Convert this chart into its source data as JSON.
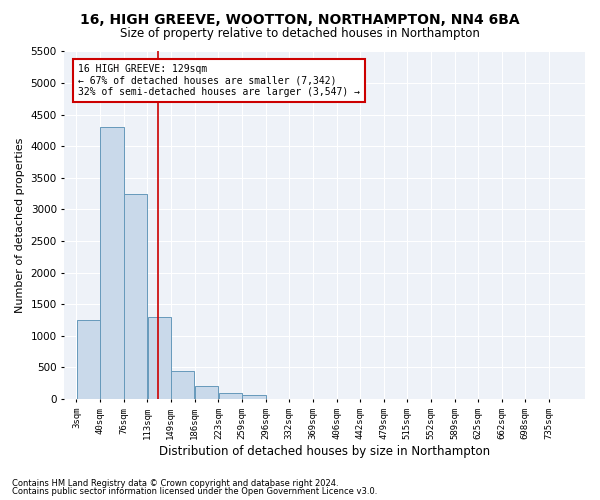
{
  "title": "16, HIGH GREEVE, WOOTTON, NORTHAMPTON, NN4 6BA",
  "subtitle": "Size of property relative to detached houses in Northampton",
  "xlabel": "Distribution of detached houses by size in Northampton",
  "ylabel": "Number of detached properties",
  "footnote1": "Contains HM Land Registry data © Crown copyright and database right 2024.",
  "footnote2": "Contains public sector information licensed under the Open Government Licence v3.0.",
  "annotation_title": "16 HIGH GREEVE: 129sqm",
  "annotation_line1": "← 67% of detached houses are smaller (7,342)",
  "annotation_line2": "32% of semi-detached houses are larger (3,547) →",
  "property_size": 129,
  "bar_color": "#c9d9ea",
  "bar_edge_color": "#6699bb",
  "vline_color": "#cc0000",
  "annotation_box_edgecolor": "#cc0000",
  "background_color": "#eef2f8",
  "categories": [
    "3sqm",
    "40sqm",
    "76sqm",
    "113sqm",
    "149sqm",
    "186sqm",
    "223sqm",
    "259sqm",
    "296sqm",
    "332sqm",
    "369sqm",
    "406sqm",
    "442sqm",
    "479sqm",
    "515sqm",
    "552sqm",
    "589sqm",
    "625sqm",
    "662sqm",
    "698sqm",
    "735sqm"
  ],
  "bin_edges": [
    3,
    40,
    76,
    113,
    149,
    186,
    223,
    259,
    296,
    332,
    369,
    406,
    442,
    479,
    515,
    552,
    589,
    625,
    662,
    698,
    735
  ],
  "values": [
    1250,
    4300,
    3250,
    1300,
    450,
    200,
    100,
    60,
    0,
    0,
    0,
    0,
    0,
    0,
    0,
    0,
    0,
    0,
    0,
    0
  ],
  "ylim": [
    0,
    5500
  ],
  "yticks": [
    0,
    500,
    1000,
    1500,
    2000,
    2500,
    3000,
    3500,
    4000,
    4500,
    5000,
    5500
  ]
}
